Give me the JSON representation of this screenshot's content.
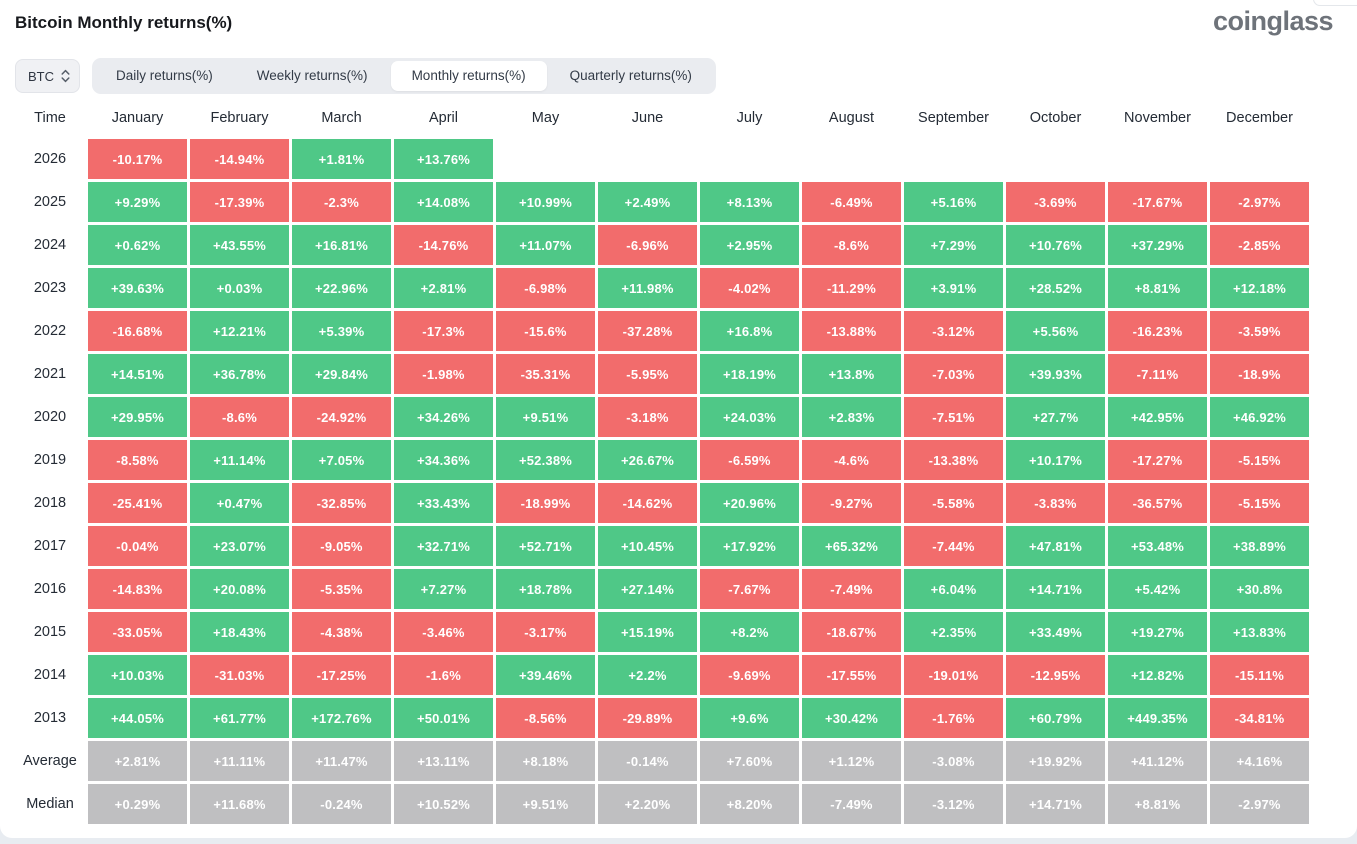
{
  "header": {
    "title": "Bitcoin Monthly returns(%)",
    "logo": "coinglass"
  },
  "controls": {
    "symbol": "BTC",
    "symbol_icon": "sort-arrows",
    "tabs": [
      {
        "label": "Daily returns(%)",
        "active": false
      },
      {
        "label": "Weekly returns(%)",
        "active": false
      },
      {
        "label": "Monthly returns(%)",
        "active": true
      },
      {
        "label": "Quarterly returns(%)",
        "active": false
      }
    ]
  },
  "chart_data": {
    "type": "heatmap",
    "title": "Bitcoin Monthly returns(%)",
    "columns": [
      "Time",
      "January",
      "February",
      "March",
      "April",
      "May",
      "June",
      "July",
      "August",
      "September",
      "October",
      "November",
      "December"
    ],
    "colors": {
      "positive": "#4fc887",
      "negative": "#f26c6c",
      "summary": "#bfbfc1"
    },
    "rows": [
      {
        "label": "2026",
        "type": "year",
        "values": [
          "-10.17%",
          "-14.94%",
          "+1.81%",
          "+13.76%",
          null,
          null,
          null,
          null,
          null,
          null,
          null,
          null
        ]
      },
      {
        "label": "2025",
        "type": "year",
        "values": [
          "+9.29%",
          "-17.39%",
          "-2.3%",
          "+14.08%",
          "+10.99%",
          "+2.49%",
          "+8.13%",
          "-6.49%",
          "+5.16%",
          "-3.69%",
          "-17.67%",
          "-2.97%"
        ]
      },
      {
        "label": "2024",
        "type": "year",
        "values": [
          "+0.62%",
          "+43.55%",
          "+16.81%",
          "-14.76%",
          "+11.07%",
          "-6.96%",
          "+2.95%",
          "-8.6%",
          "+7.29%",
          "+10.76%",
          "+37.29%",
          "-2.85%"
        ]
      },
      {
        "label": "2023",
        "type": "year",
        "values": [
          "+39.63%",
          "+0.03%",
          "+22.96%",
          "+2.81%",
          "-6.98%",
          "+11.98%",
          "-4.02%",
          "-11.29%",
          "+3.91%",
          "+28.52%",
          "+8.81%",
          "+12.18%"
        ]
      },
      {
        "label": "2022",
        "type": "year",
        "values": [
          "-16.68%",
          "+12.21%",
          "+5.39%",
          "-17.3%",
          "-15.6%",
          "-37.28%",
          "+16.8%",
          "-13.88%",
          "-3.12%",
          "+5.56%",
          "-16.23%",
          "-3.59%"
        ]
      },
      {
        "label": "2021",
        "type": "year",
        "values": [
          "+14.51%",
          "+36.78%",
          "+29.84%",
          "-1.98%",
          "-35.31%",
          "-5.95%",
          "+18.19%",
          "+13.8%",
          "-7.03%",
          "+39.93%",
          "-7.11%",
          "-18.9%"
        ]
      },
      {
        "label": "2020",
        "type": "year",
        "values": [
          "+29.95%",
          "-8.6%",
          "-24.92%",
          "+34.26%",
          "+9.51%",
          "-3.18%",
          "+24.03%",
          "+2.83%",
          "-7.51%",
          "+27.7%",
          "+42.95%",
          "+46.92%"
        ]
      },
      {
        "label": "2019",
        "type": "year",
        "values": [
          "-8.58%",
          "+11.14%",
          "+7.05%",
          "+34.36%",
          "+52.38%",
          "+26.67%",
          "-6.59%",
          "-4.6%",
          "-13.38%",
          "+10.17%",
          "-17.27%",
          "-5.15%"
        ]
      },
      {
        "label": "2018",
        "type": "year",
        "values": [
          "-25.41%",
          "+0.47%",
          "-32.85%",
          "+33.43%",
          "-18.99%",
          "-14.62%",
          "+20.96%",
          "-9.27%",
          "-5.58%",
          "-3.83%",
          "-36.57%",
          "-5.15%"
        ]
      },
      {
        "label": "2017",
        "type": "year",
        "values": [
          "-0.04%",
          "+23.07%",
          "-9.05%",
          "+32.71%",
          "+52.71%",
          "+10.45%",
          "+17.92%",
          "+65.32%",
          "-7.44%",
          "+47.81%",
          "+53.48%",
          "+38.89%"
        ]
      },
      {
        "label": "2016",
        "type": "year",
        "values": [
          "-14.83%",
          "+20.08%",
          "-5.35%",
          "+7.27%",
          "+18.78%",
          "+27.14%",
          "-7.67%",
          "-7.49%",
          "+6.04%",
          "+14.71%",
          "+5.42%",
          "+30.8%"
        ]
      },
      {
        "label": "2015",
        "type": "year",
        "values": [
          "-33.05%",
          "+18.43%",
          "-4.38%",
          "-3.46%",
          "-3.17%",
          "+15.19%",
          "+8.2%",
          "-18.67%",
          "+2.35%",
          "+33.49%",
          "+19.27%",
          "+13.83%"
        ]
      },
      {
        "label": "2014",
        "type": "year",
        "values": [
          "+10.03%",
          "-31.03%",
          "-17.25%",
          "-1.6%",
          "+39.46%",
          "+2.2%",
          "-9.69%",
          "-17.55%",
          "-19.01%",
          "-12.95%",
          "+12.82%",
          "-15.11%"
        ]
      },
      {
        "label": "2013",
        "type": "year",
        "values": [
          "+44.05%",
          "+61.77%",
          "+172.76%",
          "+50.01%",
          "-8.56%",
          "-29.89%",
          "+9.6%",
          "+30.42%",
          "-1.76%",
          "+60.79%",
          "+449.35%",
          "-34.81%"
        ]
      },
      {
        "label": "Average",
        "type": "summary",
        "values": [
          "+2.81%",
          "+11.11%",
          "+11.47%",
          "+13.11%",
          "+8.18%",
          "-0.14%",
          "+7.60%",
          "+1.12%",
          "-3.08%",
          "+19.92%",
          "+41.12%",
          "+4.16%"
        ]
      },
      {
        "label": "Median",
        "type": "summary",
        "values": [
          "+0.29%",
          "+11.68%",
          "-0.24%",
          "+10.52%",
          "+9.51%",
          "+2.20%",
          "+8.20%",
          "-7.49%",
          "-3.12%",
          "+14.71%",
          "+8.81%",
          "-2.97%"
        ]
      }
    ]
  }
}
